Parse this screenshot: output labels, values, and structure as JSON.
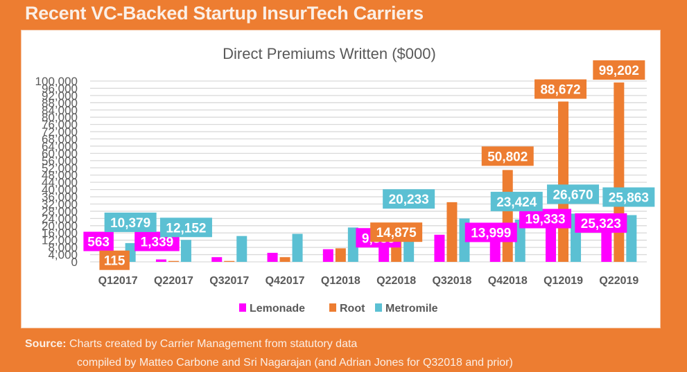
{
  "banner": {
    "title": "Recent VC-Backed Startup InsurTech Carriers"
  },
  "source": {
    "label": "Source:",
    "line1": "Charts created by Carrier Management from statutory data",
    "line2": "compiled by Matteo Carbone and Sri Nagarajan (and Adrian Jones for Q32018 and prior)"
  },
  "colors": {
    "background": "#ED7D31",
    "lemonade": "#FF00FF",
    "root": "#ED7D31",
    "metromile": "#5BC0D3",
    "grid": "#D9D9D9",
    "text": "#595959"
  },
  "chart_data": {
    "type": "bar",
    "title": "Direct Premiums Written ($000)",
    "xlabel": "",
    "ylabel": "",
    "ylim": [
      0,
      100000
    ],
    "ytick_step": 4000,
    "yticks": [
      "0",
      "4,000",
      "8,000",
      "12,000",
      "16,000",
      "20,000",
      "24,000",
      "28,000",
      "32,000",
      "36,000",
      "40,000",
      "44,000",
      "48,000",
      "52,000",
      "56,000",
      "60,000",
      "64,000",
      "68,000",
      "72,000",
      "76,000",
      "80,000",
      "84,000",
      "88,000",
      "92,000",
      "96,000",
      "100,000"
    ],
    "grid": true,
    "legend_position": "bottom",
    "categories": [
      "Q12017",
      "Q22017",
      "Q32017",
      "Q42017",
      "Q12018",
      "Q22018",
      "Q32018",
      "Q42018",
      "Q12019",
      "Q22019"
    ],
    "series": [
      {
        "name": "Lemonade",
        "color": "#FF00FF",
        "values": [
          563,
          1339,
          2600,
          5000,
          7000,
          9856,
          15000,
          13999,
          19333,
          25323
        ],
        "labels": [
          "563",
          "1,339",
          null,
          null,
          null,
          "9,856",
          null,
          "13,999",
          "19,333",
          "25,323"
        ]
      },
      {
        "name": "Root",
        "color": "#ED7D31",
        "values": [
          115,
          500,
          500,
          2600,
          7500,
          14875,
          33000,
          50802,
          88672,
          99202
        ],
        "labels": [
          "115",
          null,
          null,
          null,
          null,
          "14,875",
          null,
          "50,802",
          "88,672",
          "99,202"
        ]
      },
      {
        "name": "Metromile",
        "color": "#5BC0D3",
        "values": [
          10379,
          12152,
          14300,
          15500,
          19000,
          20233,
          24000,
          23424,
          26670,
          25863
        ],
        "labels": [
          "10,379",
          "12,152",
          null,
          null,
          null,
          "20,233",
          null,
          "23,424",
          "26,670",
          "25,863"
        ]
      }
    ]
  }
}
